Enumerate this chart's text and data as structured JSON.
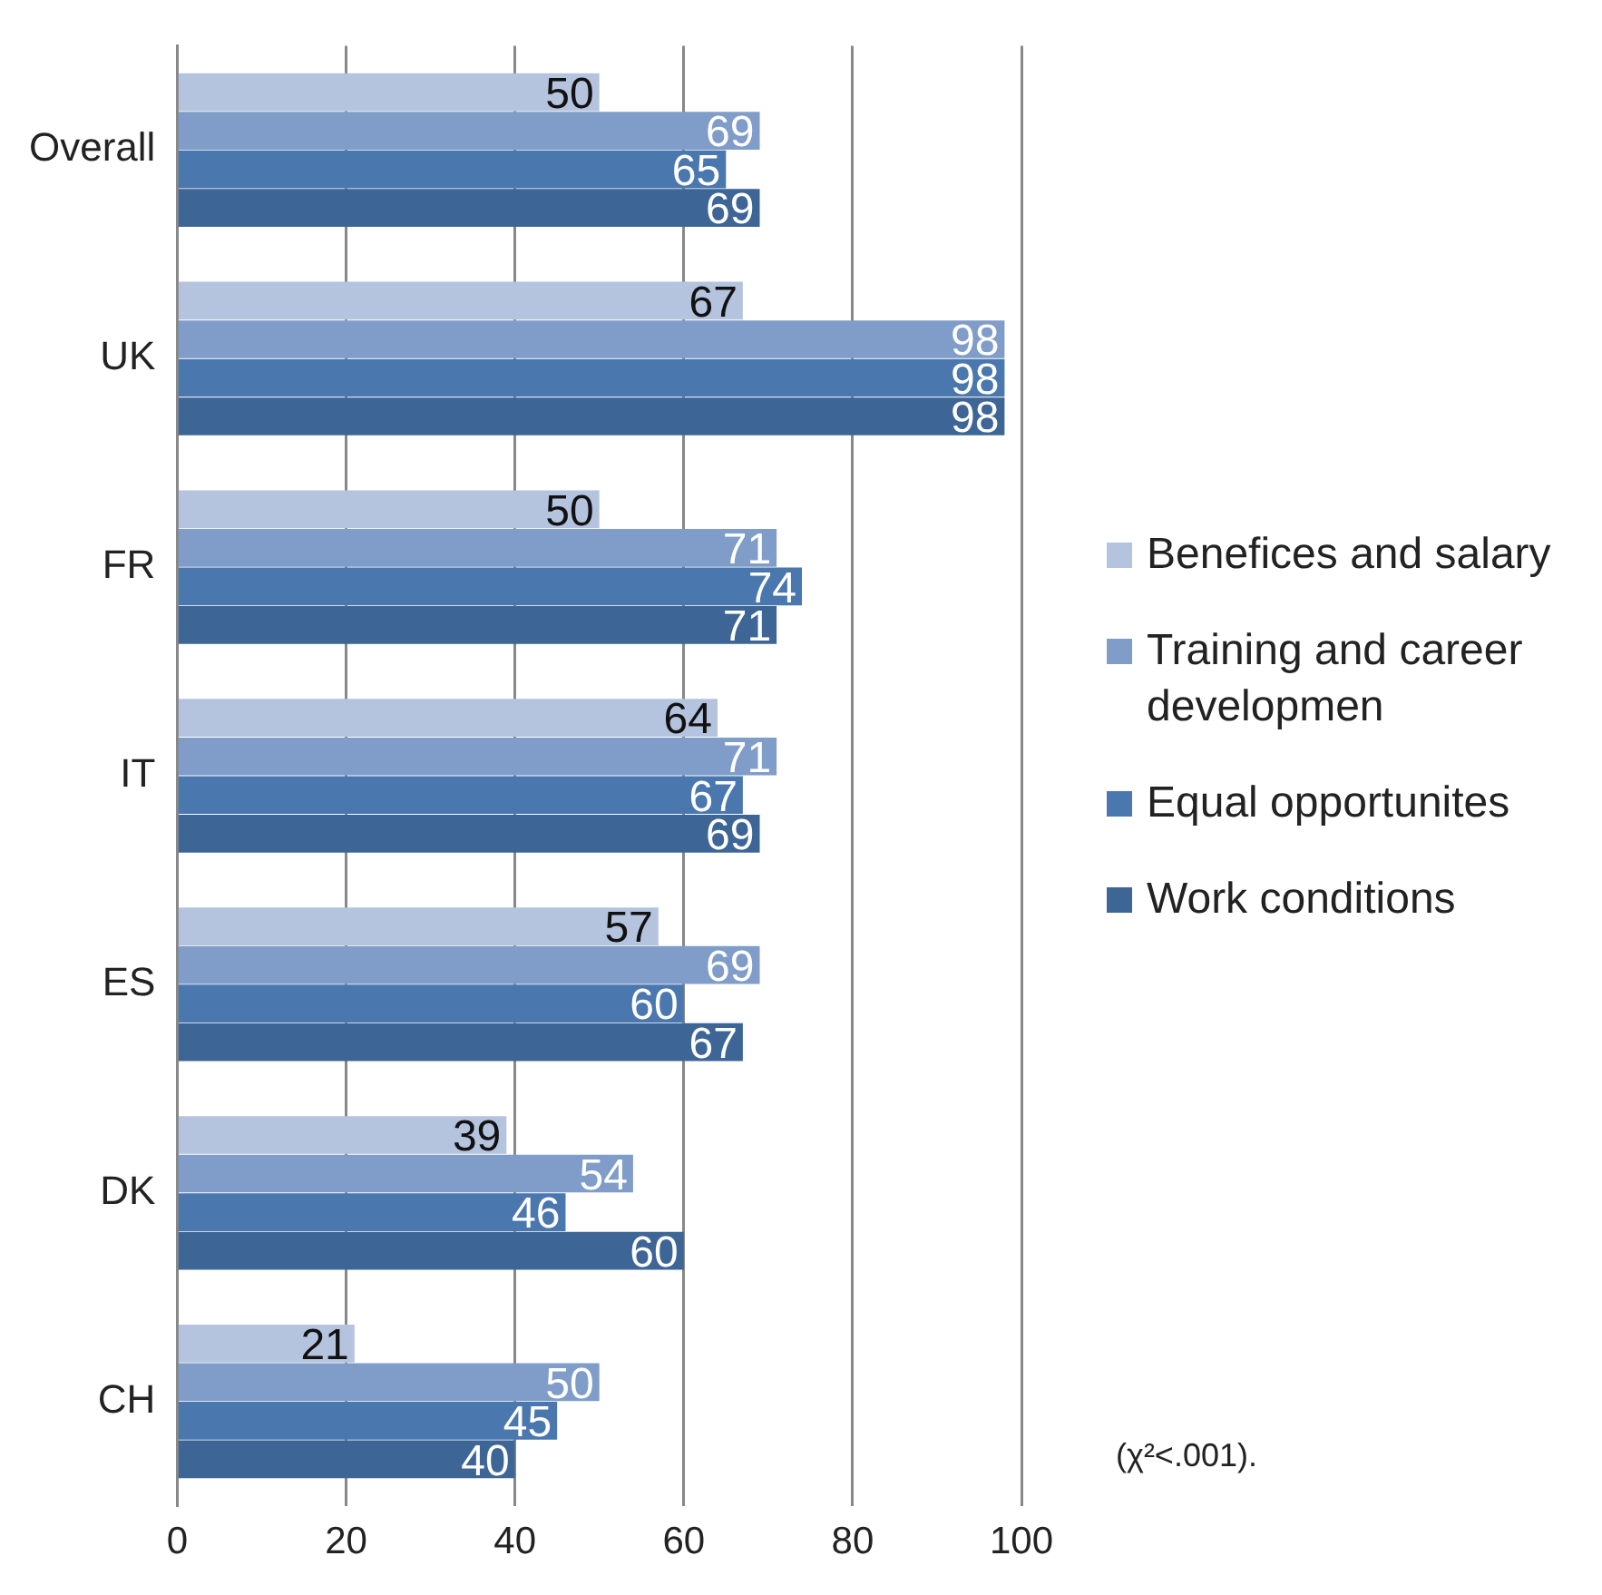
{
  "chart_data": {
    "type": "bar",
    "orientation": "horizontal",
    "categories": [
      "Overall",
      "UK",
      "FR",
      "IT",
      "ES",
      "DK",
      "CH"
    ],
    "series": [
      {
        "name": "Benefices and salary",
        "color": "#b4c3de",
        "values": [
          50,
          67,
          50,
          64,
          57,
          39,
          21
        ]
      },
      {
        "name": "Training and career developmen",
        "color": "#7f9dc8",
        "values": [
          69,
          98,
          71,
          71,
          69,
          54,
          50
        ]
      },
      {
        "name": "Equal opportunites",
        "color": "#4977ae",
        "values": [
          65,
          98,
          74,
          67,
          60,
          46,
          45
        ]
      },
      {
        "name": "Work conditions",
        "color": "#3d6596",
        "values": [
          69,
          98,
          71,
          69,
          67,
          60,
          40
        ]
      }
    ],
    "xlim": [
      0,
      100
    ],
    "xticks": [
      0,
      20,
      40,
      60,
      80,
      100
    ],
    "grid": "x",
    "legend": "right",
    "data_labels": true,
    "annotations": [
      "(χ²<.001)."
    ]
  }
}
